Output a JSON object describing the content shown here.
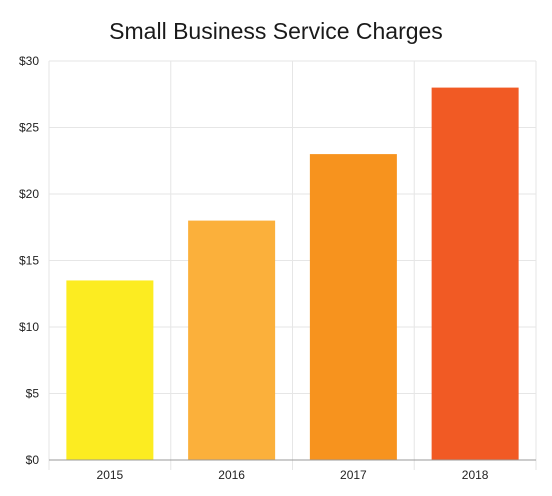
{
  "chart_data": {
    "type": "bar",
    "title": "Small Business Service Charges",
    "xlabel": "",
    "ylabel": "",
    "categories": [
      "2015",
      "2016",
      "2017",
      "2018"
    ],
    "values": [
      13.5,
      18,
      23,
      28
    ],
    "colors": [
      "#fcec21",
      "#fbb03b",
      "#f7931e",
      "#f15a24"
    ],
    "ylim": [
      0,
      30
    ],
    "yticks": [
      0,
      5,
      10,
      15,
      20,
      25,
      30
    ],
    "ytick_labels": [
      "$0",
      "$5",
      "$10",
      "$15",
      "$20",
      "$25",
      "$30"
    ],
    "grid": true,
    "legend": "none"
  }
}
